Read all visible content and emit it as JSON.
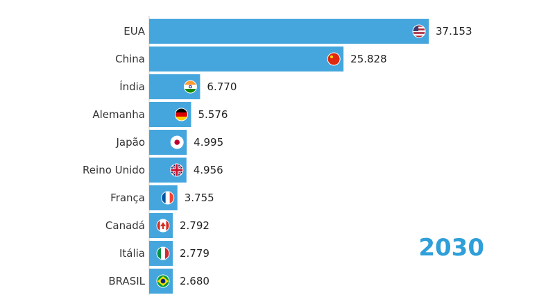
{
  "chart_data": {
    "type": "bar",
    "orientation": "horizontal",
    "categories": [
      "EUA",
      "China",
      "Índia",
      "Alemanha",
      "Japão",
      "Reino Unido",
      "França",
      "Canadá",
      "Itália",
      "BRASIL"
    ],
    "values": [
      37153,
      25828,
      6770,
      5576,
      4995,
      4956,
      3755,
      2792,
      2779,
      2680
    ],
    "value_labels": [
      "37.153",
      "25.828",
      "6.770",
      "5.576",
      "4.995",
      "4.956",
      "3.755",
      "2.792",
      "2.779",
      "2.680"
    ],
    "flag_icons": [
      "usa-flag-icon",
      "china-flag-icon",
      "india-flag-icon",
      "germany-flag-icon",
      "japan-flag-icon",
      "uk-flag-icon",
      "france-flag-icon",
      "canada-flag-icon",
      "italy-flag-icon",
      "brazil-flag-icon"
    ],
    "year": "2030",
    "bar_color": "#45a6dd",
    "year_color": "#2e9fd8",
    "axis_line_color": "#cfcfcf",
    "grid": false
  }
}
